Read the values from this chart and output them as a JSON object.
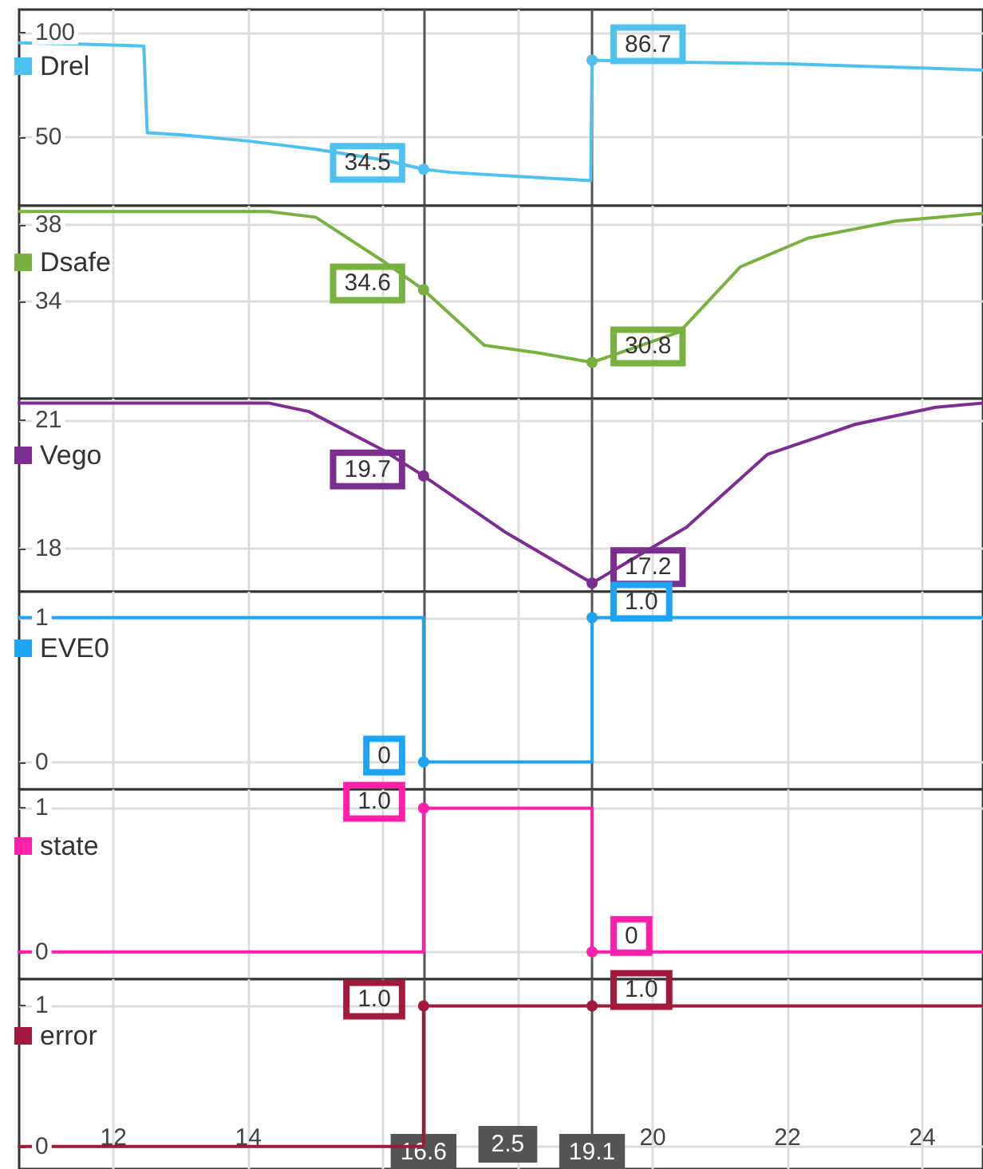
{
  "chart_data": [
    {
      "type": "line",
      "xlim": [
        10.6,
        24.9
      ],
      "xticks": [
        12,
        14,
        16,
        18,
        20,
        22,
        24
      ],
      "ylim": [
        17,
        111
      ],
      "yticks": [
        50,
        100
      ],
      "tick_labels": "y",
      "grid": true,
      "legend": "top left",
      "series": [
        {
          "name": "Drel",
          "color": "#4fc1ee",
          "x": [
            10.6,
            11.5,
            12.0,
            12.45,
            12.5,
            13,
            14,
            15,
            16,
            16.6,
            17,
            18,
            19.08,
            19.1,
            20,
            21,
            22,
            23,
            24,
            24.9
          ],
          "values": [
            95,
            94.5,
            94,
            93.5,
            52,
            51,
            48,
            44,
            39,
            34.5,
            33,
            31,
            29,
            86.7,
            86,
            85.5,
            85,
            84,
            83,
            82
          ],
          "value_labels": [
            null,
            null,
            null,
            null,
            null,
            null,
            null,
            null,
            null,
            "34.5",
            null,
            null,
            null,
            "86.7",
            null,
            null,
            null,
            null,
            null,
            null
          ]
        }
      ],
      "ref_lines": [
        {
          "axis": "x",
          "value": 16.6,
          "color": "#555555"
        },
        {
          "axis": "x",
          "value": 19.1,
          "color": "#555555"
        }
      ]
    },
    {
      "type": "line",
      "xlim": [
        10.6,
        24.9
      ],
      "xticks": [
        12,
        14,
        16,
        18,
        20,
        22,
        24
      ],
      "ylim": [
        28.9,
        39
      ],
      "yticks": [
        34,
        38
      ],
      "tick_labels": "y",
      "grid": true,
      "legend": "top left",
      "series": [
        {
          "name": "Dsafe",
          "color": "#78b13f",
          "x": [
            10.6,
            12,
            14.3,
            15,
            16,
            16.6,
            17.5,
            18.3,
            19.1,
            20.4,
            21.3,
            22.3,
            23.6,
            24.9
          ],
          "values": [
            38.7,
            38.7,
            38.7,
            38.4,
            36.1,
            34.6,
            31.7,
            31.3,
            30.8,
            32.4,
            35.8,
            37.3,
            38.2,
            38.6
          ],
          "value_labels": [
            null,
            null,
            null,
            null,
            null,
            "34.6",
            null,
            null,
            "30.8",
            null,
            null,
            null,
            null,
            null
          ]
        }
      ],
      "ref_lines": [
        {
          "axis": "x",
          "value": 16.6,
          "color": "#555555"
        },
        {
          "axis": "x",
          "value": 19.1,
          "color": "#555555"
        }
      ]
    },
    {
      "type": "line",
      "xlim": [
        10.6,
        24.9
      ],
      "xticks": [
        12,
        14,
        16,
        18,
        20,
        22,
        24
      ],
      "ylim": [
        17,
        21.5
      ],
      "yticks": [
        18,
        21
      ],
      "tick_labels": "y",
      "grid": true,
      "legend": "top left",
      "series": [
        {
          "name": "Vego",
          "color": "#7b2e8f",
          "x": [
            10.6,
            12,
            14.3,
            14.9,
            16.0,
            16.6,
            17.8,
            19.1,
            20.5,
            21.7,
            23,
            24.2,
            24.9
          ],
          "values": [
            21.4,
            21.4,
            21.4,
            21.2,
            20.3,
            19.7,
            18.4,
            17.2,
            18.5,
            20.2,
            20.9,
            21.3,
            21.4
          ],
          "value_labels": [
            null,
            null,
            null,
            null,
            null,
            "19.7",
            null,
            "17.2",
            null,
            null,
            null,
            null,
            null
          ]
        }
      ],
      "ref_lines": [
        {
          "axis": "x",
          "value": 16.6,
          "color": "#555555"
        },
        {
          "axis": "x",
          "value": 19.1,
          "color": "#555555"
        }
      ]
    },
    {
      "type": "line",
      "xlim": [
        10.6,
        24.9
      ],
      "xticks": [
        12,
        14,
        16,
        18,
        20,
        22,
        24
      ],
      "ylim": [
        -0.19,
        1.18
      ],
      "yticks": [
        0,
        1
      ],
      "tick_labels": "y",
      "grid": true,
      "legend": "top left",
      "series": [
        {
          "name": "EVE0",
          "color": "#1fa3f5",
          "x": [
            10.6,
            16.6,
            16.6,
            19.1,
            19.1,
            24.9
          ],
          "values": [
            1,
            1,
            0,
            0,
            1,
            1
          ],
          "value_labels": [
            null,
            null,
            "0",
            null,
            "1.0",
            null
          ]
        }
      ],
      "ref_lines": [
        {
          "axis": "x",
          "value": 16.6,
          "color": "#555555"
        },
        {
          "axis": "x",
          "value": 19.1,
          "color": "#555555"
        }
      ]
    },
    {
      "type": "line",
      "xlim": [
        10.6,
        24.9
      ],
      "xticks": [
        12,
        14,
        16,
        18,
        20,
        22,
        24
      ],
      "ylim": [
        -0.19,
        1.13
      ],
      "yticks": [
        0,
        1
      ],
      "tick_labels": "y",
      "grid": true,
      "legend": "top left",
      "series": [
        {
          "name": "state",
          "color": "#ff1fa8",
          "x": [
            10.6,
            16.6,
            16.6,
            19.1,
            19.1,
            24.9
          ],
          "values": [
            0,
            0,
            1,
            1,
            0,
            0
          ],
          "value_labels": [
            null,
            null,
            "1.0",
            null,
            "0",
            null
          ]
        }
      ],
      "ref_lines": [
        {
          "axis": "x",
          "value": 16.6,
          "color": "#555555"
        },
        {
          "axis": "x",
          "value": 19.1,
          "color": "#555555"
        }
      ]
    },
    {
      "type": "line",
      "xlim": [
        10.6,
        24.9
      ],
      "xticks": [
        12,
        14,
        {
          "value": 16,
          "label": null
        },
        {
          "value": 18,
          "label": null
        },
        20,
        22,
        24
      ],
      "ylim": [
        -0.16,
        1.19
      ],
      "yticks": [
        0,
        1
      ],
      "grid": true,
      "legend": "top left",
      "series": [
        {
          "name": "error",
          "color": "#a11a3b",
          "x": [
            10.6,
            16.6,
            16.6,
            19.1,
            24.9
          ],
          "values": [
            0,
            0,
            1,
            1,
            1
          ],
          "value_labels": [
            null,
            null,
            "1.0",
            "1.0",
            null
          ]
        }
      ],
      "ref_lines": [
        {
          "axis": "x",
          "value": 16.6,
          "color": "#555555",
          "label": "16.6"
        },
        {
          "axis": "x",
          "value": 19.1,
          "color": "#555555",
          "label": "19.1"
        }
      ],
      "annotations": [
        "2.5"
      ]
    }
  ]
}
